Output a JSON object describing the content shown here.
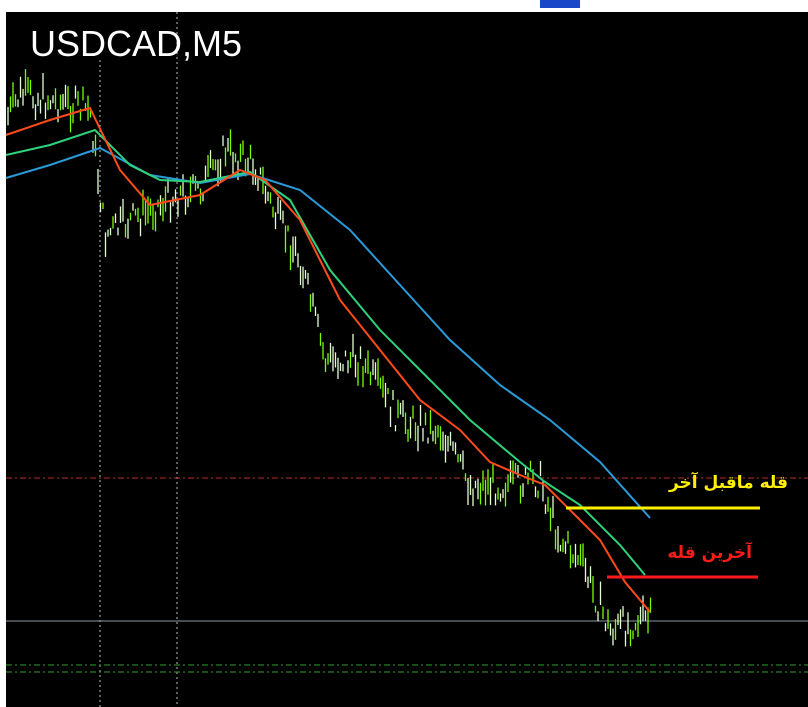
{
  "header": {
    "title": "USDCAD,M5"
  },
  "annotations": [
    {
      "text": "قله ماقبل آخر"
    },
    {
      "text": "آخرین قله"
    }
  ]
}
